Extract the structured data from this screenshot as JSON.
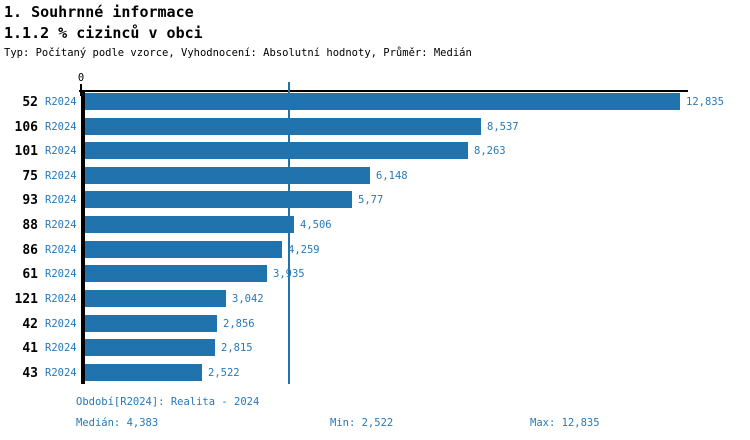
{
  "header": {
    "title": "1. Souhrnné informace",
    "subtitle": "1.1.2 % cizinců v obci",
    "meta": "Typ: Počítaný podle vzorce, Vyhodnocení: Absolutní hodnoty, Průměr: Medián"
  },
  "colors": {
    "bar": "#2173ae",
    "blue_text": "#2878b8",
    "axis": "#000000",
    "median_line": "#2173ae"
  },
  "chart_data": {
    "type": "bar",
    "orientation": "horizontal",
    "title": "1.1.2 % cizinců v obci",
    "origin_tick_label": "0",
    "series_label": "R2024",
    "categories": [
      "52",
      "106",
      "101",
      "75",
      "93",
      "88",
      "86",
      "61",
      "121",
      "42",
      "41",
      "43"
    ],
    "values": [
      12.835,
      8.537,
      8.263,
      6.148,
      5.77,
      4.506,
      4.259,
      3.935,
      3.042,
      2.856,
      2.815,
      2.522
    ],
    "value_labels": [
      "12,835",
      "8,537",
      "8,263",
      "6,148",
      "5,77",
      "4,506",
      "4,259",
      "3,935",
      "3,042",
      "2,856",
      "2,815",
      "2,522"
    ],
    "median_value": 4.383,
    "xlim": [
      0,
      12.835
    ],
    "grid": false,
    "legend": "none"
  },
  "footer": {
    "period": "Období[R2024]: Realita - 2024",
    "median": "Medián: 4,383",
    "min": "Min: 2,522",
    "max": "Max: 12,835"
  }
}
